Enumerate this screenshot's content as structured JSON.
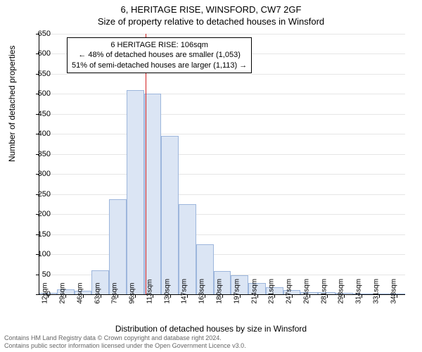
{
  "title_main": "6, HERITAGE RISE, WINSFORD, CW7 2GF",
  "title_sub": "Size of property relative to detached houses in Winsford",
  "chart": {
    "type": "histogram",
    "ylabel": "Number of detached properties",
    "xlabel": "Distribution of detached houses by size in Winsford",
    "ylim_max": 650,
    "ytick_step": 50,
    "bar_fill": "#dbe5f4",
    "bar_stroke": "#9db6dc",
    "grid_color": "#e6e6e6",
    "background": "#ffffff",
    "marker_color": "#d11f1f",
    "bins": [
      {
        "label": "12sqm",
        "value": 3
      },
      {
        "label": "29sqm",
        "value": 12
      },
      {
        "label": "46sqm",
        "value": 8
      },
      {
        "label": "63sqm",
        "value": 60
      },
      {
        "label": "79sqm",
        "value": 238
      },
      {
        "label": "96sqm",
        "value": 510
      },
      {
        "label": "113sqm",
        "value": 500
      },
      {
        "label": "130sqm",
        "value": 395
      },
      {
        "label": "147sqm",
        "value": 225
      },
      {
        "label": "163sqm",
        "value": 125
      },
      {
        "label": "180sqm",
        "value": 58
      },
      {
        "label": "197sqm",
        "value": 48
      },
      {
        "label": "214sqm",
        "value": 28
      },
      {
        "label": "231sqm",
        "value": 18
      },
      {
        "label": "247sqm",
        "value": 10
      },
      {
        "label": "264sqm",
        "value": 6
      },
      {
        "label": "281sqm",
        "value": 6
      },
      {
        "label": "298sqm",
        "value": 3
      },
      {
        "label": "314sqm",
        "value": 2
      },
      {
        "label": "331sqm",
        "value": 2
      },
      {
        "label": "348sqm",
        "value": 2
      }
    ],
    "marker_bin_index": 5.6,
    "annotation": {
      "line1": "6 HERITAGE RISE: 106sqm",
      "line2": "← 48% of detached houses are smaller (1,053)",
      "line3": "51% of semi-detached houses are larger (1,113) →"
    }
  },
  "footer_line1": "Contains HM Land Registry data © Crown copyright and database right 2024.",
  "footer_line2": "Contains public sector information licensed under the Open Government Licence v3.0."
}
